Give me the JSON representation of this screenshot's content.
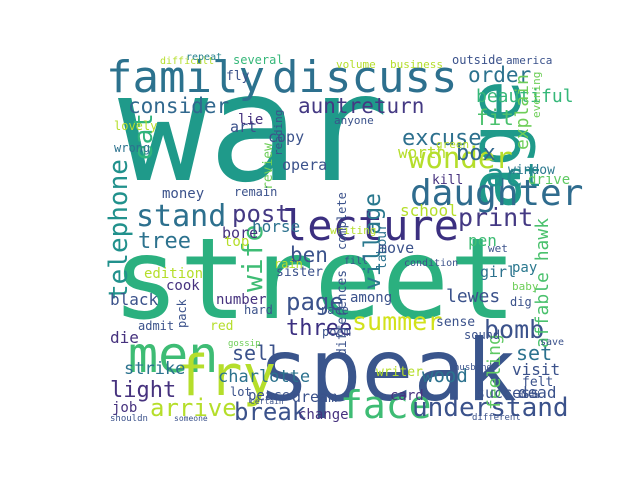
{
  "words": [
    {
      "text": "war",
      "color": "#1f9a8a"
    },
    {
      "text": "street",
      "color": "#2bb07f"
    },
    {
      "text": "speak",
      "color": "#3a558c"
    },
    {
      "text": "family",
      "color": "#2c728e"
    },
    {
      "text": "discuss",
      "color": "#2d708e"
    },
    {
      "text": "age",
      "color": "#1f9a8a"
    },
    {
      "text": "lecture",
      "color": "#3b2f80"
    },
    {
      "text": "daughter",
      "color": "#2f6c8e"
    },
    {
      "text": "men",
      "color": "#3ebc74"
    },
    {
      "text": "fry",
      "color": "#b5de2b"
    },
    {
      "text": "face",
      "color": "#3ebc74"
    },
    {
      "text": "understand",
      "color": "#3b528b"
    },
    {
      "text": "stand",
      "color": "#2d708e"
    },
    {
      "text": "consider",
      "color": "#31688e"
    },
    {
      "text": "auntreturn",
      "color": "#443983"
    },
    {
      "text": "telephone",
      "color": "#21918c"
    },
    {
      "text": "eat",
      "color": "#2fb47c"
    },
    {
      "text": "wonder",
      "color": "#b5de2b"
    },
    {
      "text": "order",
      "color": "#2c728e"
    },
    {
      "text": "fit",
      "color": "#4ac16d"
    },
    {
      "text": "act",
      "color": "#218f8d"
    },
    {
      "text": "box",
      "color": "#31688e"
    },
    {
      "text": "excuse",
      "color": "#2d708e"
    },
    {
      "text": "beautiful",
      "color": "#35b779"
    },
    {
      "text": "print",
      "color": "#443983"
    },
    {
      "text": "village",
      "color": "#2a788e"
    },
    {
      "text": "post",
      "color": "#443983"
    },
    {
      "text": "wife",
      "color": "#3ebc74"
    },
    {
      "text": "tree",
      "color": "#2c728e"
    },
    {
      "text": "ben",
      "color": "#3b528b"
    },
    {
      "text": "page",
      "color": "#3b528b"
    },
    {
      "text": "summer",
      "color": "#d2e21b"
    },
    {
      "text": "bomb",
      "color": "#3b528b"
    },
    {
      "text": "light",
      "color": "#46327e"
    },
    {
      "text": "sell",
      "color": "#3b528b"
    },
    {
      "text": "arrive",
      "color": "#b5de2b"
    },
    {
      "text": "break",
      "color": "#3b528b"
    },
    {
      "text": "three",
      "color": "#3b2f80"
    },
    {
      "text": "set",
      "color": "#2c728e"
    },
    {
      "text": "strike",
      "color": "#2c728e"
    },
    {
      "text": "charlotte",
      "color": "#2c728e"
    },
    {
      "text": "lewes",
      "color": "#3b528b"
    },
    {
      "text": "feeling",
      "color": "#5ec962"
    },
    {
      "text": "affable hawk",
      "color": "#4ac16d"
    },
    {
      "text": "school",
      "color": "#b5de2b"
    },
    {
      "text": "worth",
      "color": "#b5de2b"
    },
    {
      "text": "explain",
      "color": "#6ece58"
    },
    {
      "text": "drive",
      "color": "#5ec962"
    },
    {
      "text": "window",
      "color": "#2a788e"
    },
    {
      "text": "pen",
      "color": "#3ebc74"
    },
    {
      "text": "girl",
      "color": "#2c728e"
    },
    {
      "text": "pay",
      "color": "#2a788e"
    },
    {
      "text": "visit",
      "color": "#3b528b"
    },
    {
      "text": "felt",
      "color": "#3b528b"
    },
    {
      "text": "dead",
      "color": "#3b528b"
    },
    {
      "text": "success",
      "color": "#3b528b"
    },
    {
      "text": "wood",
      "color": "#2c728e"
    },
    {
      "text": "card",
      "color": "#46327e"
    },
    {
      "text": "writer",
      "color": "#b5de2b"
    },
    {
      "text": "dream",
      "color": "#3b528b"
    },
    {
      "text": "peace",
      "color": "#3b528b"
    },
    {
      "text": "change",
      "color": "#46327e"
    },
    {
      "text": "job",
      "color": "#46327e"
    },
    {
      "text": "die",
      "color": "#46327e"
    },
    {
      "text": "black",
      "color": "#3b528b"
    },
    {
      "text": "cook",
      "color": "#46327e"
    },
    {
      "text": "edition",
      "color": "#b5de2b"
    },
    {
      "text": "number",
      "color": "#46327e"
    },
    {
      "text": "money",
      "color": "#3b528b"
    },
    {
      "text": "copy",
      "color": "#3b528b"
    },
    {
      "text": "opera",
      "color": "#3b528b"
    },
    {
      "text": "review",
      "color": "#6ece58"
    },
    {
      "text": "art",
      "color": "#3b528b"
    },
    {
      "text": "lie",
      "color": "#46327e"
    },
    {
      "text": "fly",
      "color": "#3b528b"
    },
    {
      "text": "several",
      "color": "#35b779"
    },
    {
      "text": "volume",
      "color": "#b5de2b"
    },
    {
      "text": "business",
      "color": "#b5de2b"
    },
    {
      "text": "outside",
      "color": "#3b528b"
    },
    {
      "text": "america",
      "color": "#3b528b"
    },
    {
      "text": "difficult",
      "color": "#b5de2b"
    },
    {
      "text": "repeat",
      "color": "#26828e"
    },
    {
      "text": "anyone",
      "color": "#3b528b"
    },
    {
      "text": "reading",
      "color": "#3b528b"
    },
    {
      "text": "bore",
      "color": "#46327e"
    },
    {
      "text": "top",
      "color": "#b5de2b"
    },
    {
      "text": "horse",
      "color": "#2c728e"
    },
    {
      "text": "sister",
      "color": "#3b528b"
    },
    {
      "text": "labour",
      "color": "#2c728e"
    },
    {
      "text": "condition",
      "color": "#3b528b"
    },
    {
      "text": "move",
      "color": "#3b528b"
    },
    {
      "text": "among",
      "color": "#3b528b"
    },
    {
      "text": "sense",
      "color": "#3b528b"
    },
    {
      "text": "sound",
      "color": "#3b528b"
    },
    {
      "text": "poem",
      "color": "#3b528b"
    },
    {
      "text": "race",
      "color": "#3b528b"
    },
    {
      "text": "differences",
      "color": "#3b528b"
    },
    {
      "text": "lovely",
      "color": "#b5de2b"
    },
    {
      "text": "wrong",
      "color": "#2c728e"
    },
    {
      "text": "kill",
      "color": "#46327e"
    },
    {
      "text": "green",
      "color": "#b5de2b"
    },
    {
      "text": "evening",
      "color": "#6ece58"
    },
    {
      "text": "remain",
      "color": "#3b528b"
    },
    {
      "text": "pack",
      "color": "#3b528b"
    },
    {
      "text": "admit",
      "color": "#3b528b"
    },
    {
      "text": "lot",
      "color": "#3b528b"
    },
    {
      "text": "red",
      "color": "#b5de2b"
    },
    {
      "text": "hard",
      "color": "#3b528b"
    },
    {
      "text": "rain",
      "color": "#b5de2b"
    },
    {
      "text": "fill",
      "color": "#3b528b"
    },
    {
      "text": "dig",
      "color": "#3b528b"
    },
    {
      "text": "baby",
      "color": "#6ece58"
    },
    {
      "text": "wet",
      "color": "#3b528b"
    },
    {
      "text": "save",
      "color": "#3b528b"
    },
    {
      "text": "shouldn",
      "color": "#3b528b"
    },
    {
      "text": "certain",
      "color": "#3b528b"
    },
    {
      "text": "someone",
      "color": "#3b528b"
    },
    {
      "text": "different",
      "color": "#3b528b"
    },
    {
      "text": "dead",
      "color": "#3b528b"
    },
    {
      "text": "writing",
      "color": "#b5de2b"
    },
    {
      "text": "complete",
      "color": "#3b528b"
    },
    {
      "text": "gossip",
      "color": "#6ece58"
    },
    {
      "text": "husband",
      "color": "#3b528b"
    }
  ]
}
